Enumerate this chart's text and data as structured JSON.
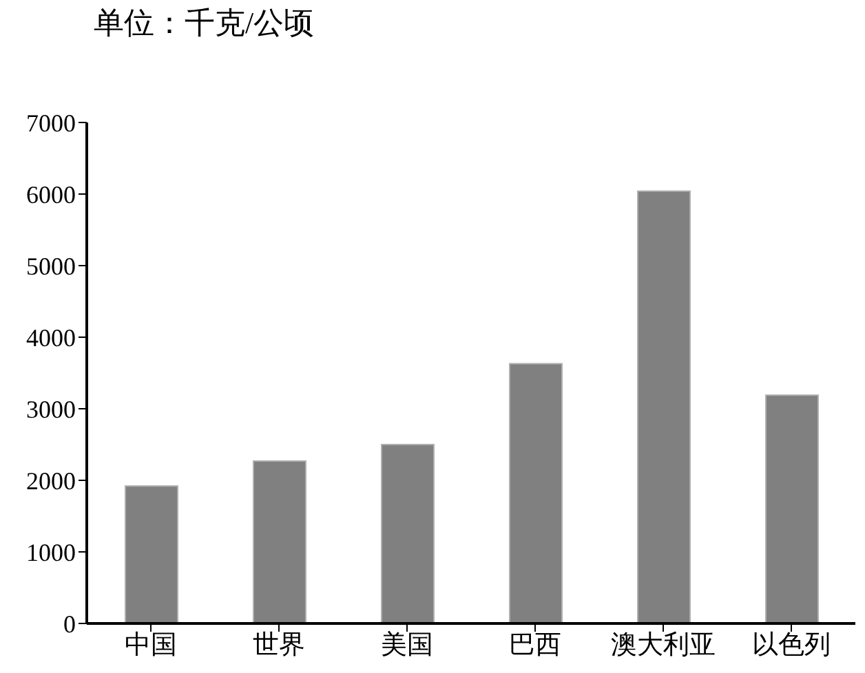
{
  "chart_data": {
    "type": "bar",
    "ylabel": "单位：千克/公顷",
    "categories": [
      "中国",
      "世界",
      "美国",
      "巴西",
      "澳大利亚",
      "以色列"
    ],
    "values": [
      1920,
      2270,
      2500,
      3630,
      6040,
      3190
    ],
    "color": "#808080",
    "ylim": [
      0,
      7000
    ],
    "yticks": [
      0,
      1000,
      2000,
      3000,
      4000,
      5000,
      6000,
      7000
    ],
    "grid": false,
    "legend": false
  }
}
